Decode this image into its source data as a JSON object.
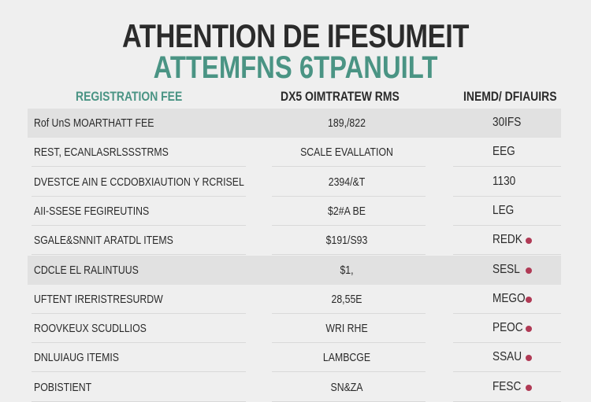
{
  "header": {
    "title": "ATHENTION DE IFESUMEIT",
    "subtitle": "ATTEMFNS 6TPANUILT"
  },
  "columns": [
    "REGISTRATION FEE",
    "DX5 OIMTRATEW RMS",
    "INEMD/ DFIAUIRS"
  ],
  "colors": {
    "accent": "#4a9484",
    "status_dot": "#b03a55",
    "shaded_row": "#e1e1e1"
  },
  "rows": [
    {
      "name": "Rof UnS MOARTHATT FEE",
      "value": "189,/822",
      "status": "30IFS",
      "dot": false,
      "shaded": true
    },
    {
      "name": "REST, ECANLASRLSSSTRMS",
      "value": "SCALE EVALLATION",
      "status": "EEG",
      "dot": false,
      "shaded": false
    },
    {
      "name": "DVESTCE AIN E CCDOBXIAUTION Y RCRISEL",
      "value": "2394/&T",
      "status": "1130",
      "dot": false,
      "shaded": false
    },
    {
      "name": "AII-SSESE FEGIREUTINS",
      "value": "$2#A BE",
      "status": "LEG",
      "dot": false,
      "shaded": false
    },
    {
      "name": "SGALE&SNNIT ARATDL ITEMS",
      "value": "$191/S93",
      "status": "REDK",
      "dot": true,
      "shaded": false
    },
    {
      "name": "CDCLE EL RALINTUUS",
      "value": "$1,",
      "status": "SESL",
      "dot": true,
      "shaded": true
    },
    {
      "name": "UFTENT IRERISTRESURDW",
      "value": "28,55E",
      "status": "MEGO",
      "dot": true,
      "shaded": false
    },
    {
      "name": "ROOVKEUX SCUDLLIOS",
      "value": "WRI RHE",
      "status": "PEOC",
      "dot": true,
      "shaded": false
    },
    {
      "name": "DNLUIAUG ITEMIS",
      "value": "LAMBCGE",
      "status": "SSAU",
      "dot": true,
      "shaded": false
    },
    {
      "name": "POBISTIENT",
      "value": "SN&ZA",
      "status": "FESC",
      "dot": true,
      "shaded": false
    }
  ]
}
